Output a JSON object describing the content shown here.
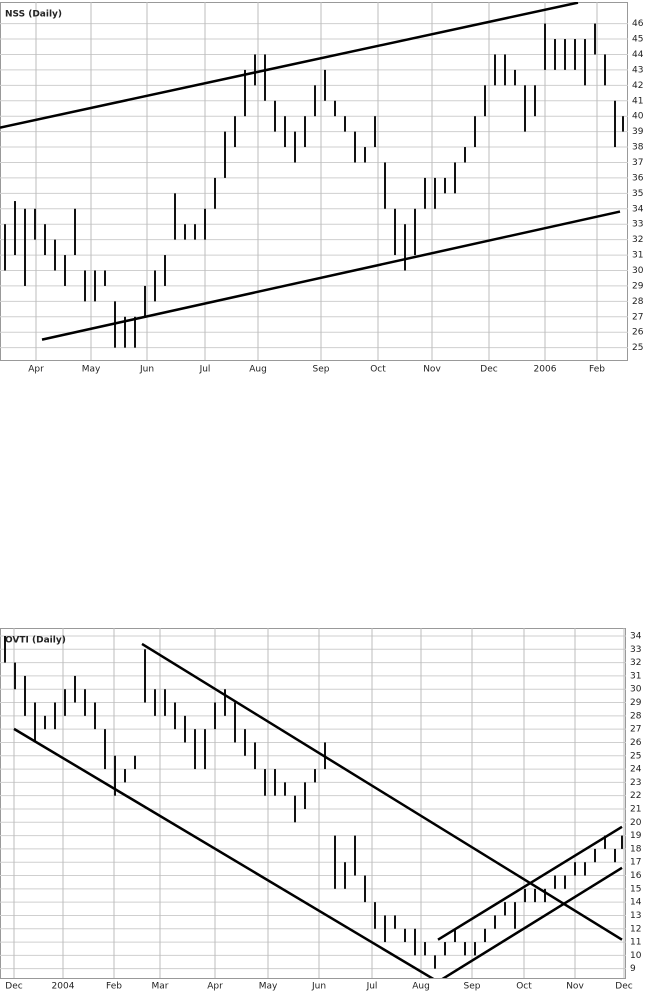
{
  "chart_data": [
    {
      "type": "hilo",
      "title": "NSS (Daily)",
      "color": "#111111",
      "grid": true,
      "xlim": [
        0,
        62.8
      ],
      "ylim": [
        24.2,
        47.4
      ],
      "xticks": [
        {
          "value": 3.6,
          "label": "Apr"
        },
        {
          "value": 9.1,
          "label": "May"
        },
        {
          "value": 14.7,
          "label": "Jun"
        },
        {
          "value": 20.5,
          "label": "Jul"
        },
        {
          "value": 25.8,
          "label": "Aug"
        },
        {
          "value": 32.1,
          "label": "Sep"
        },
        {
          "value": 37.8,
          "label": "Oct"
        },
        {
          "value": 43.2,
          "label": "Nov"
        },
        {
          "value": 48.9,
          "label": "Dec"
        },
        {
          "value": 54.5,
          "label": "2006"
        },
        {
          "value": 59.7,
          "label": "Feb"
        }
      ],
      "yticks": [
        25,
        26,
        27,
        28,
        29,
        30,
        31,
        32,
        33,
        34,
        35,
        36,
        37,
        38,
        39,
        40,
        41,
        42,
        43,
        44,
        45,
        46
      ],
      "x": [
        0.5,
        1.5,
        2.5,
        3.5,
        4.5,
        5.5,
        6.5,
        7.5,
        8.5,
        9.5,
        10.5,
        11.5,
        12.5,
        13.5,
        14.5,
        15.5,
        16.5,
        17.5,
        18.5,
        19.5,
        20.5,
        21.5,
        22.5,
        23.5,
        24.5,
        25.5,
        26.5,
        27.5,
        28.5,
        29.5,
        30.5,
        31.5,
        32.5,
        33.5,
        34.5,
        35.5,
        36.5,
        37.5,
        38.5,
        39.5,
        40.5,
        41.5,
        42.5,
        43.5,
        44.5,
        45.5,
        46.5,
        47.5,
        48.5,
        49.5,
        50.5,
        51.5,
        52.5,
        53.5,
        54.5,
        55.5,
        56.5,
        57.5,
        58.5,
        59.5,
        60.5,
        61.5,
        62.3
      ],
      "high": [
        33,
        34.5,
        34,
        34,
        33,
        32,
        31,
        34,
        30,
        30,
        30,
        28,
        27,
        27,
        29,
        30,
        31,
        35,
        33,
        33,
        34,
        36,
        39,
        40,
        43,
        44,
        44,
        41,
        40,
        39,
        40,
        42,
        43,
        41,
        40,
        39,
        38,
        40,
        37,
        34,
        33,
        34,
        36,
        36,
        36,
        37,
        38,
        40,
        42,
        44,
        44,
        43,
        42,
        42,
        46,
        45,
        45,
        45,
        45,
        46,
        44,
        41,
        40
      ],
      "low": [
        30,
        31,
        29,
        32,
        31,
        30,
        29,
        31,
        28,
        28,
        29,
        25,
        25,
        25,
        27,
        28,
        29,
        32,
        32,
        32,
        32,
        34,
        36,
        38,
        40,
        42,
        41,
        39,
        38,
        37,
        38,
        40,
        41,
        40,
        39,
        37,
        37,
        38,
        34,
        31,
        30,
        31,
        34,
        34,
        35,
        35,
        37,
        38,
        40,
        42,
        42,
        42,
        39,
        40,
        43,
        43,
        43,
        43,
        42,
        44,
        42,
        38,
        39
      ],
      "trendlines": [
        {
          "x": [
            0,
            57.8
          ],
          "y": [
            39.26,
            47.36
          ]
        },
        {
          "x": [
            4.2,
            62.0
          ],
          "y": [
            25.52,
            33.82
          ]
        }
      ]
    },
    {
      "type": "hilo",
      "title": "OVTI (Daily)",
      "color": "#111111",
      "grid": true,
      "xlim": [
        0,
        62.6
      ],
      "ylim": [
        8.3,
        34.6
      ],
      "xticks": [
        {
          "value": 1.4,
          "label": "Dec"
        },
        {
          "value": 6.3,
          "label": "2004"
        },
        {
          "value": 11.4,
          "label": "Feb"
        },
        {
          "value": 16.0,
          "label": "Mar"
        },
        {
          "value": 21.5,
          "label": "Apr"
        },
        {
          "value": 26.8,
          "label": "May"
        },
        {
          "value": 31.9,
          "label": "Jun"
        },
        {
          "value": 37.2,
          "label": "Jul"
        },
        {
          "value": 42.1,
          "label": "Aug"
        },
        {
          "value": 47.2,
          "label": "Sep"
        },
        {
          "value": 52.4,
          "label": "Oct"
        },
        {
          "value": 57.5,
          "label": "Nov"
        },
        {
          "value": 62.4,
          "label": "Dec"
        }
      ],
      "yticks": [
        9,
        10,
        11,
        12,
        13,
        14,
        15,
        16,
        17,
        18,
        19,
        20,
        21,
        22,
        23,
        24,
        25,
        26,
        27,
        28,
        29,
        30,
        31,
        32,
        33,
        34
      ],
      "x": [
        0.5,
        1.5,
        2.5,
        3.5,
        4.5,
        5.5,
        6.5,
        7.5,
        8.5,
        9.5,
        10.5,
        11.5,
        12.5,
        13.5,
        14.5,
        15.5,
        16.5,
        17.5,
        18.5,
        19.5,
        20.5,
        21.5,
        22.5,
        23.5,
        24.5,
        25.5,
        26.5,
        27.5,
        28.5,
        29.5,
        30.5,
        31.5,
        32.5,
        33.5,
        34.5,
        35.5,
        36.5,
        37.5,
        38.5,
        39.5,
        40.5,
        41.5,
        42.5,
        43.5,
        44.5,
        45.5,
        46.5,
        47.5,
        48.5,
        49.5,
        50.5,
        51.5,
        52.5,
        53.5,
        54.5,
        55.5,
        56.5,
        57.5,
        58.5,
        59.5,
        60.5,
        61.5,
        62.2
      ],
      "high": [
        34,
        32,
        31,
        29,
        28,
        29,
        30,
        31,
        30,
        29,
        27,
        25,
        24,
        25,
        33,
        30,
        30,
        29,
        28,
        27,
        27,
        29,
        30,
        29,
        27,
        26,
        24,
        24,
        23,
        22,
        23,
        24,
        26,
        19,
        17,
        19,
        16,
        14,
        13,
        13,
        12,
        12,
        11,
        10,
        11,
        12,
        11,
        11,
        12,
        13,
        14,
        14,
        15,
        15,
        15,
        16,
        16,
        17,
        17,
        18,
        19,
        18,
        19
      ],
      "low": [
        32,
        30,
        28,
        26,
        27,
        27,
        28,
        29,
        28,
        27,
        24,
        22,
        23,
        24,
        29,
        28,
        28,
        27,
        26,
        24,
        24,
        27,
        28,
        26,
        25,
        24,
        22,
        22,
        22,
        20,
        21,
        23,
        24,
        15,
        15,
        16,
        14,
        12,
        11,
        12,
        11,
        10,
        10,
        9,
        10,
        11,
        10,
        10,
        11,
        12,
        13,
        12,
        14,
        14,
        14,
        15,
        15,
        16,
        16,
        17,
        18,
        17,
        18
      ],
      "trendlines": [
        {
          "x": [
            1.4,
            43.8
          ],
          "y": [
            27.02,
            8.02
          ]
        },
        {
          "x": [
            43.8,
            62.2
          ],
          "y": [
            8.02,
            16.58
          ]
        },
        {
          "x": [
            43.8,
            62.2
          ],
          "y": [
            11.18,
            19.66
          ]
        },
        {
          "x": [
            14.2,
            62.2
          ],
          "y": [
            33.4,
            11.18
          ]
        }
      ]
    }
  ]
}
